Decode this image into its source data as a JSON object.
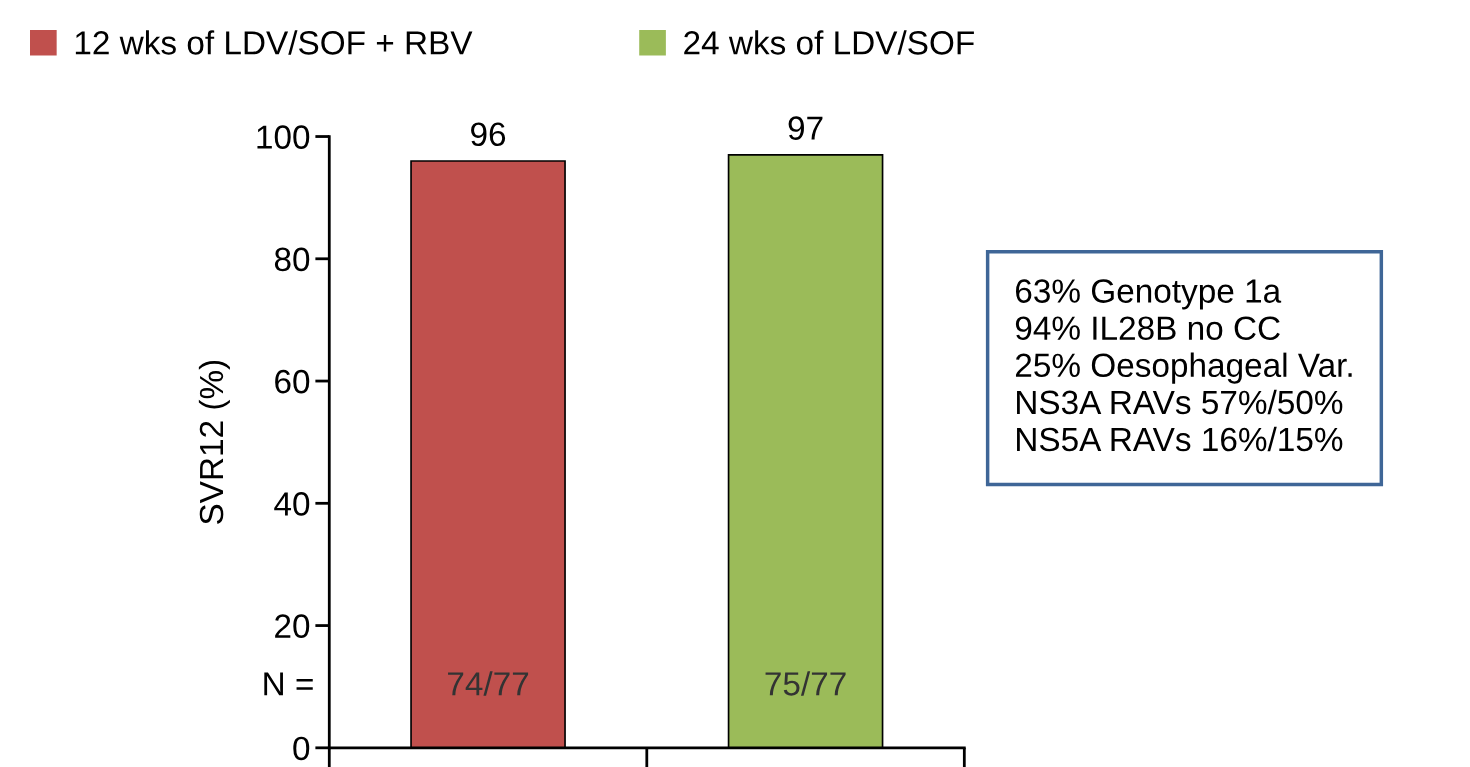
{
  "chart_data": {
    "type": "bar",
    "ylabel": "SVR12 (%)",
    "categories": [
      null,
      null
    ],
    "series": [
      {
        "name": "12 wks of LDV/SOF + RBV",
        "color": "#c0504d",
        "values": [
          96,
          null
        ]
      },
      {
        "name": "24 wks of LDV/SOF",
        "color": "#9bbb59",
        "values": [
          null,
          97
        ]
      }
    ],
    "ylim": [
      0,
      100
    ],
    "yticks": [
      0,
      20,
      40,
      60,
      80,
      100
    ],
    "grid": false,
    "legend": "top",
    "data_labels": true,
    "annotations": [
      "74/77",
      "75/77",
      "N =",
      "63% Genotype 1a\n94% IL28B no CC\n25% Oesophageal Var.\nNS3A RAVs 57%/50%\nNS5A RAVs 16%/15%"
    ]
  }
}
